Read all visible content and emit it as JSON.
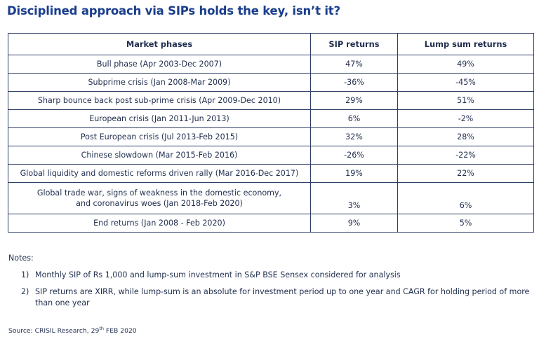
{
  "title": "Disciplined approach via SIPs holds the key, isn’t it?",
  "table": {
    "headers": [
      "Market phases",
      "SIP returns",
      "Lump sum returns"
    ],
    "rows": [
      {
        "phase": "Bull phase (Apr 2003-Dec 2007)",
        "sip": "47%",
        "lump": "49%"
      },
      {
        "phase": "Subprime crisis (Jan 2008-Mar 2009)",
        "sip": "-36%",
        "lump": "-45%"
      },
      {
        "phase": "Sharp bounce back post sub-prime crisis (Apr 2009-Dec 2010)",
        "sip": "29%",
        "lump": "51%"
      },
      {
        "phase": "European crisis (Jan 2011-Jun 2013)",
        "sip": "6%",
        "lump": "-2%"
      },
      {
        "phase": "Post European crisis (Jul 2013-Feb 2015)",
        "sip": "32%",
        "lump": "28%"
      },
      {
        "phase": "Chinese slowdown (Mar 2015-Feb 2016)",
        "sip": "-26%",
        "lump": "-22%"
      },
      {
        "phase": "Global liquidity and domestic reforms driven rally (Mar 2016-Dec 2017)",
        "sip": "19%",
        "lump": "22%"
      },
      {
        "phase_line1": "Global trade war, signs of weakness in the domestic economy,",
        "phase_line2": "and coronavirus woes (Jan 2018-Feb 2020)",
        "sip": "3%",
        "lump": "6%"
      },
      {
        "phase": "End returns (Jan 2008 - Feb 2020)",
        "sip": "9%",
        "lump": "5%"
      }
    ]
  },
  "notes": {
    "title": "Notes:",
    "items": [
      {
        "num": "1)",
        "text": "Monthly SIP of Rs 1,000 and lump-sum investment in S&P BSE Sensex considered for analysis"
      },
      {
        "num": "2)",
        "text": "SIP returns are XIRR, while lump-sum is an absolute for investment period up to one year and CAGR for holding period of more than one year"
      }
    ]
  },
  "source": {
    "prefix": "Source: CRISIL Research, 29",
    "superscript": "th",
    "suffix": " FEB 2020"
  },
  "colors": {
    "title": "#1a3e8c",
    "text": "#1f2d4d",
    "border": "#2d3e66"
  }
}
